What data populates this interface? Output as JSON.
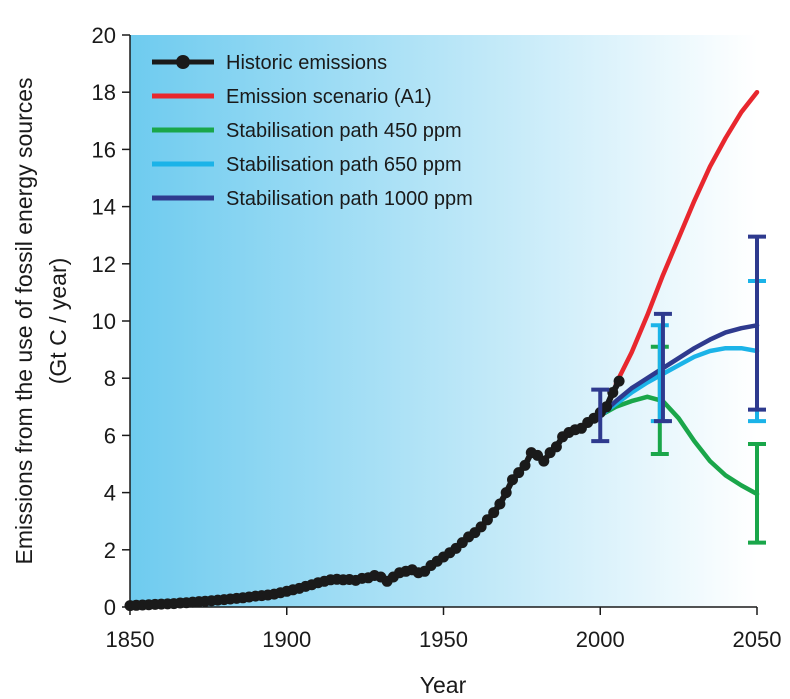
{
  "chart_data": {
    "type": "line",
    "title": "",
    "xlabel": "Year",
    "ylabel_line1": "Emissions from the use of fossil energy sources",
    "ylabel_line2": "(Gt C / year)",
    "xlim": [
      1850,
      2050
    ],
    "ylim": [
      0,
      20
    ],
    "x_ticks": [
      1850,
      1900,
      1950,
      2000,
      2050
    ],
    "y_ticks": [
      0,
      2,
      4,
      6,
      8,
      10,
      12,
      14,
      16,
      18,
      20
    ],
    "grid": false,
    "legend_position": "top-left",
    "background": {
      "gradient_from": "#6ecbef",
      "gradient_to": "#ffffff"
    },
    "series": [
      {
        "name": "Historic emissions",
        "color": "#1a1a1a",
        "marker": "circle",
        "x": [
          1850,
          1852,
          1854,
          1856,
          1858,
          1860,
          1862,
          1864,
          1866,
          1868,
          1870,
          1872,
          1874,
          1876,
          1878,
          1880,
          1882,
          1884,
          1886,
          1888,
          1890,
          1892,
          1894,
          1896,
          1898,
          1900,
          1902,
          1904,
          1906,
          1908,
          1910,
          1912,
          1914,
          1916,
          1918,
          1920,
          1922,
          1924,
          1926,
          1928,
          1930,
          1932,
          1934,
          1936,
          1938,
          1940,
          1942,
          1944,
          1946,
          1948,
          1950,
          1952,
          1954,
          1956,
          1958,
          1960,
          1962,
          1964,
          1966,
          1968,
          1970,
          1972,
          1974,
          1976,
          1978,
          1980,
          1982,
          1984,
          1986,
          1988,
          1990,
          1992,
          1994,
          1996,
          1998,
          2000,
          2002,
          2004,
          2006
        ],
        "y": [
          0.05,
          0.06,
          0.07,
          0.08,
          0.09,
          0.1,
          0.11,
          0.12,
          0.14,
          0.15,
          0.17,
          0.19,
          0.2,
          0.22,
          0.24,
          0.26,
          0.28,
          0.3,
          0.32,
          0.35,
          0.38,
          0.4,
          0.42,
          0.45,
          0.5,
          0.55,
          0.6,
          0.65,
          0.72,
          0.78,
          0.85,
          0.9,
          0.95,
          0.97,
          0.95,
          0.96,
          0.93,
          1.0,
          1.02,
          1.1,
          1.05,
          0.9,
          1.05,
          1.2,
          1.25,
          1.3,
          1.2,
          1.25,
          1.45,
          1.6,
          1.75,
          1.9,
          2.05,
          2.25,
          2.45,
          2.6,
          2.8,
          3.05,
          3.3,
          3.6,
          4.0,
          4.45,
          4.7,
          4.95,
          5.4,
          5.3,
          5.1,
          5.4,
          5.6,
          5.95,
          6.1,
          6.2,
          6.25,
          6.45,
          6.6,
          6.8,
          7.0,
          7.5,
          7.9
        ]
      },
      {
        "name": "Emission scenario (A1)",
        "color": "#e8272e",
        "x": [
          2005,
          2010,
          2015,
          2020,
          2025,
          2030,
          2035,
          2040,
          2045,
          2050
        ],
        "y": [
          7.8,
          8.9,
          10.2,
          11.6,
          12.9,
          14.2,
          15.4,
          16.4,
          17.3,
          18.0
        ]
      },
      {
        "name": "Stabilisation path 450 ppm",
        "color": "#1aa64a",
        "x": [
          2000,
          2005,
          2010,
          2015,
          2020,
          2025,
          2030,
          2035,
          2040,
          2045,
          2050
        ],
        "y": [
          6.7,
          7.0,
          7.2,
          7.35,
          7.2,
          6.6,
          5.8,
          5.1,
          4.6,
          4.25,
          3.95
        ]
      },
      {
        "name": "Stabilisation path 650 ppm",
        "color": "#1bb3e8",
        "x": [
          2000,
          2005,
          2010,
          2015,
          2020,
          2025,
          2030,
          2035,
          2040,
          2045,
          2050
        ],
        "y": [
          6.7,
          7.1,
          7.5,
          7.85,
          8.15,
          8.45,
          8.75,
          8.95,
          9.05,
          9.05,
          8.95
        ]
      },
      {
        "name": "Stabilisation path 1000 ppm",
        "color": "#2e3a8e",
        "x": [
          2000,
          2005,
          2010,
          2015,
          2020,
          2025,
          2030,
          2035,
          2040,
          2045,
          2050
        ],
        "y": [
          6.7,
          7.2,
          7.65,
          8.0,
          8.35,
          8.7,
          9.05,
          9.35,
          9.6,
          9.75,
          9.85
        ]
      }
    ],
    "error_bars": [
      {
        "x": 2000,
        "low": 5.8,
        "high": 7.6,
        "color": "#2e3a8e"
      },
      {
        "x": 2019,
        "low": 5.35,
        "high": 9.1,
        "color": "#1aa64a"
      },
      {
        "x": 2019,
        "low": 6.5,
        "high": 9.85,
        "color": "#1bb3e8"
      },
      {
        "x": 2020,
        "low": 6.5,
        "high": 10.25,
        "color": "#2e3a8e"
      },
      {
        "x": 2050,
        "low": 2.25,
        "high": 5.7,
        "color": "#1aa64a"
      },
      {
        "x": 2050,
        "low": 6.5,
        "high": 11.4,
        "color": "#1bb3e8"
      },
      {
        "x": 2050,
        "low": 6.9,
        "high": 12.95,
        "color": "#2e3a8e"
      }
    ]
  }
}
